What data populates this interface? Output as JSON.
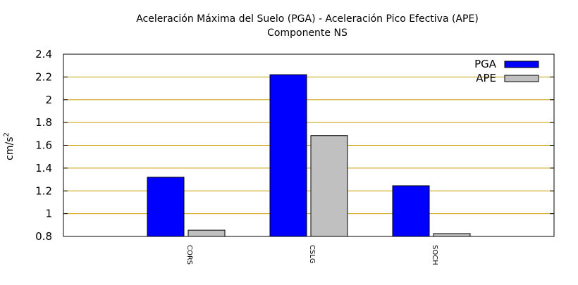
{
  "chart_data": {
    "type": "bar",
    "title": "Aceleración Máxima del Suelo (PGA) -  Aceleración Pico Efectiva (APE)",
    "subtitle": "Componente NS",
    "xlabel": "",
    "ylabel": "cm/s",
    "ylabel_superscript": "2",
    "categories": [
      "CORS",
      "CSLG",
      "SOCH"
    ],
    "series": [
      {
        "name": "PGA",
        "values": [
          1.32,
          2.22,
          1.245
        ],
        "color": "#0000ff"
      },
      {
        "name": "APE",
        "values": [
          0.855,
          1.685,
          0.825
        ],
        "color": "#c0c0c0"
      }
    ],
    "ylim": [
      0.8,
      2.4
    ],
    "yticks": [
      "0.8",
      "1",
      "1.2",
      "1.4",
      "1.6",
      "1.8",
      "2",
      "2.2",
      "2.4"
    ],
    "grid": true,
    "grid_color": "#c8a000",
    "legend_position": "top-right"
  }
}
